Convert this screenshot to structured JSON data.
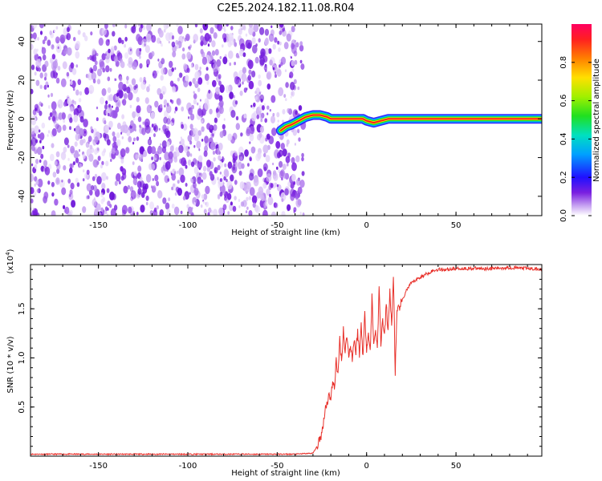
{
  "title": "C2E5.2024.182.11.08.R04",
  "colors": {
    "trace": "#e8302a",
    "dots": "#7a1fe0",
    "frame": "#000000"
  },
  "chart_data": [
    {
      "type": "heatmap",
      "xlabel": "Height of straight line (km)",
      "ylabel": "Frequency (Hz)",
      "xlim": [
        -188,
        98
      ],
      "ylim": [
        -50,
        49
      ],
      "xticks": [
        -150,
        -100,
        -50,
        0,
        50
      ],
      "yticks": [
        -40,
        -20,
        0,
        20,
        40
      ],
      "colorbar": {
        "label": "Normalized spectral amplitude",
        "range": [
          0,
          1
        ],
        "ticks": [
          0.0,
          0.2,
          0.4,
          0.6,
          0.8
        ]
      },
      "noise_region_x": [
        -188,
        -38
      ],
      "signal_ridge": {
        "x": [
          -48,
          -45,
          -42,
          -38,
          -34,
          -30,
          -26,
          -22,
          -20,
          -10,
          -2,
          0,
          4,
          8,
          12,
          20,
          50,
          98
        ],
        "frequency": [
          -6,
          -4,
          -3,
          -1,
          1,
          2,
          2,
          1,
          0,
          0,
          0,
          -1,
          -2,
          -1,
          0,
          0,
          0,
          0
        ]
      }
    },
    {
      "type": "line",
      "xlabel": "Height of straight line (km)",
      "ylabel": "SNR (10 * v/v)",
      "y_multiplier": "(x10",
      "y_multiplier_exp": "4",
      "xlim": [
        -188,
        98
      ],
      "ylim": [
        0,
        1.95
      ],
      "xticks": [
        -150,
        -100,
        -50,
        0,
        50
      ],
      "yticks": [
        0.5,
        1.0,
        1.5
      ],
      "series": [
        {
          "x": [
            -188,
            -150,
            -100,
            -60,
            -40,
            -30,
            -27,
            -25,
            -23,
            -22,
            -21,
            -20,
            -19,
            -18,
            -17,
            -16,
            -15,
            -14,
            -13,
            -12,
            -11,
            -10,
            -9,
            -8,
            -7,
            -6,
            -5,
            -4,
            -3,
            -2,
            -1,
            0,
            1,
            2,
            3,
            4,
            5,
            6,
            7,
            8,
            9,
            10,
            11,
            12,
            13,
            14,
            15,
            16,
            17,
            18,
            19,
            20,
            22,
            25,
            28,
            32,
            36,
            40,
            45,
            50,
            60,
            70,
            80,
            90,
            98
          ],
          "values": [
            0.02,
            0.02,
            0.02,
            0.02,
            0.02,
            0.03,
            0.12,
            0.24,
            0.5,
            0.55,
            0.62,
            0.6,
            0.75,
            0.68,
            1.0,
            0.8,
            1.2,
            0.95,
            1.3,
            1.05,
            1.25,
            1.0,
            1.15,
            0.98,
            1.2,
            1.05,
            1.28,
            1.02,
            1.35,
            1.0,
            1.45,
            1.1,
            1.25,
            1.05,
            1.62,
            1.12,
            1.3,
            1.1,
            1.7,
            1.15,
            1.4,
            1.2,
            1.55,
            1.25,
            1.7,
            1.3,
            1.85,
            0.85,
            1.45,
            1.5,
            1.55,
            1.58,
            1.68,
            1.76,
            1.8,
            1.84,
            1.88,
            1.9,
            1.9,
            1.91,
            1.91,
            1.91,
            1.92,
            1.91,
            1.9
          ]
        }
      ]
    }
  ]
}
